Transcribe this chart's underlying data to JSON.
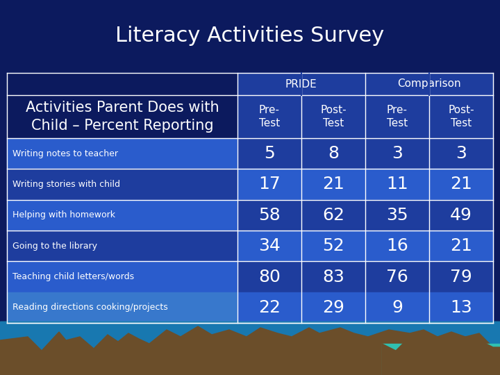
{
  "title": "Literacy Activities Survey",
  "title_color": "#FFFFFF",
  "header1": "PRIDE",
  "header2": "Comparison",
  "col_headers": [
    "Pre-\nTest",
    "Post-\nTest",
    "Pre-\nTest",
    "Post-\nTest"
  ],
  "row_label_header": "Activities Parent Does with\nChild – Percent Reporting",
  "rows": [
    {
      "label": "Writing notes to teacher",
      "values": [
        5,
        8,
        3,
        3
      ]
    },
    {
      "label": "Writing stories with child",
      "values": [
        17,
        21,
        11,
        21
      ]
    },
    {
      "label": "Helping with homework",
      "values": [
        58,
        62,
        35,
        49
      ]
    },
    {
      "label": "Going to the library",
      "values": [
        34,
        52,
        16,
        21
      ]
    },
    {
      "label": "Teaching child letters/words",
      "values": [
        80,
        83,
        76,
        79
      ]
    },
    {
      "label": "Reading directions cooking/projects",
      "values": [
        22,
        29,
        9,
        13
      ]
    }
  ],
  "bg_dark_navy": "#0c1a5e",
  "bg_medium_blue": "#1e3d9e",
  "bg_light_blue": "#2a5ccc",
  "bg_header_group": "#1e3d9e",
  "bg_subheader": "#1e3d9e",
  "bg_row_dark": "#1e3d9e",
  "bg_row_light": "#2a5ccc",
  "bg_last_row": "#3878d0",
  "text_white": "#FFFFFF",
  "border_white": "#FFFFFF",
  "title_fontsize": 22,
  "header_fontsize": 11,
  "subheader_fontsize": 11,
  "label_fontsize": 9,
  "value_fontsize": 18,
  "label_header_fontsize": 15,
  "mountain_brown": "#6b4e2a",
  "sky_teal": "#30c0b0",
  "sky_blue": "#1878b0"
}
